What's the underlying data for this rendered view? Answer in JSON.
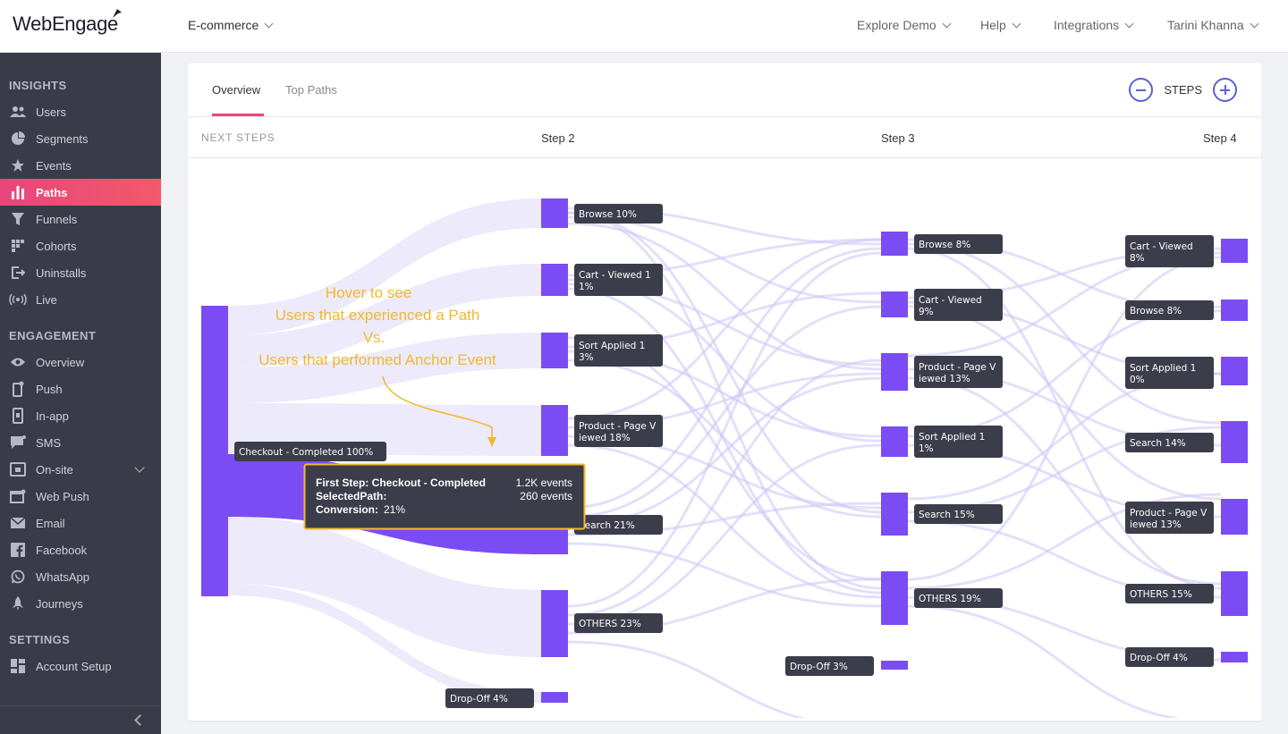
{
  "header": {
    "logo": "WebEngage",
    "project": "E-commerce",
    "nav": [
      "Explore Demo",
      "Help",
      "Integrations",
      "Tarini Khanna"
    ]
  },
  "sidebar": {
    "insights_title": "INSIGHTS",
    "insights": [
      {
        "label": "Users",
        "icon": "users-icon"
      },
      {
        "label": "Segments",
        "icon": "pie-icon"
      },
      {
        "label": "Events",
        "icon": "star-icon"
      },
      {
        "label": "Paths",
        "icon": "bar-chart-icon",
        "active": true
      },
      {
        "label": "Funnels",
        "icon": "funnel-icon"
      },
      {
        "label": "Cohorts",
        "icon": "grid-icon"
      },
      {
        "label": "Uninstalls",
        "icon": "exit-icon"
      },
      {
        "label": "Live",
        "icon": "broadcast-icon"
      }
    ],
    "engagement_title": "ENGAGEMENT",
    "engagement": [
      {
        "label": "Overview",
        "icon": "eye-icon"
      },
      {
        "label": "Push",
        "icon": "phone-icon"
      },
      {
        "label": "In-app",
        "icon": "tablet-icon"
      },
      {
        "label": "SMS",
        "icon": "chat-icon"
      },
      {
        "label": "On-site",
        "icon": "window-icon",
        "expandable": true
      },
      {
        "label": "Web Push",
        "icon": "browser-icon"
      },
      {
        "label": "Email",
        "icon": "mail-icon"
      },
      {
        "label": "Facebook",
        "icon": "facebook-icon"
      },
      {
        "label": "WhatsApp",
        "icon": "whatsapp-icon"
      },
      {
        "label": "Journeys",
        "icon": "rocket-icon"
      }
    ],
    "settings_title": "SETTINGS",
    "settings": [
      {
        "label": "Account Setup",
        "icon": "dashboard-icon"
      }
    ]
  },
  "tabs": [
    "Overview",
    "Top Paths"
  ],
  "steps_label": "STEPS",
  "columns": {
    "next_steps": "NEXT STEPS",
    "step2": "Step 2",
    "step3": "Step 3",
    "step4": "Step 4"
  },
  "annotation": [
    "Hover to see",
    "Users that experienced a Path",
    "Vs.",
    "Users that performed Anchor Event"
  ],
  "tooltip": {
    "line1_label": "First Step: Checkout - Completed",
    "line1_value": "1.2K events",
    "line2_label": "SelectedPath:",
    "line2_value": "260 events",
    "line3_label": "Conversion:",
    "line3_value": "21%"
  },
  "nodes": {
    "step1": [
      {
        "label": "Checkout - Completed 100%"
      }
    ],
    "step2": [
      {
        "label": [
          "Browse 10%"
        ]
      },
      {
        "label": [
          "Cart - Viewed 1",
          "1%"
        ]
      },
      {
        "label": [
          "Sort Applied 1",
          "3%"
        ]
      },
      {
        "label": [
          "Product - Page V",
          "iewed 18%"
        ]
      },
      {
        "label": [
          "Search 21%"
        ]
      },
      {
        "label": [
          "OTHERS 23%"
        ]
      },
      {
        "label": [
          "Drop-Off 4%"
        ]
      }
    ],
    "step3": [
      {
        "label": [
          "Browse 8%"
        ]
      },
      {
        "label": [
          "Cart - Viewed",
          "9%"
        ]
      },
      {
        "label": [
          "Product - Page V",
          "iewed 13%"
        ]
      },
      {
        "label": [
          "Sort Applied 1",
          "1%"
        ]
      },
      {
        "label": [
          "Search 15%"
        ]
      },
      {
        "label": [
          "OTHERS 19%"
        ]
      },
      {
        "label": [
          "Drop-Off 3%"
        ]
      }
    ],
    "step4": [
      {
        "label": [
          "Cart - Viewed",
          "8%"
        ]
      },
      {
        "label": [
          "Browse 8%"
        ]
      },
      {
        "label": [
          "Sort Applied 1",
          "0%"
        ]
      },
      {
        "label": [
          "Search 14%"
        ]
      },
      {
        "label": [
          "Product - Page V",
          "iewed 13%"
        ]
      },
      {
        "label": [
          "OTHERS 15%"
        ]
      },
      {
        "label": [
          "Drop-Off 4%"
        ]
      }
    ]
  },
  "colors": {
    "accent": "#e8467c",
    "node": "#7b4cf3",
    "flow": "#ece9fb",
    "label_bg": "#3c3d4b",
    "annotation": "#f0b92e"
  }
}
